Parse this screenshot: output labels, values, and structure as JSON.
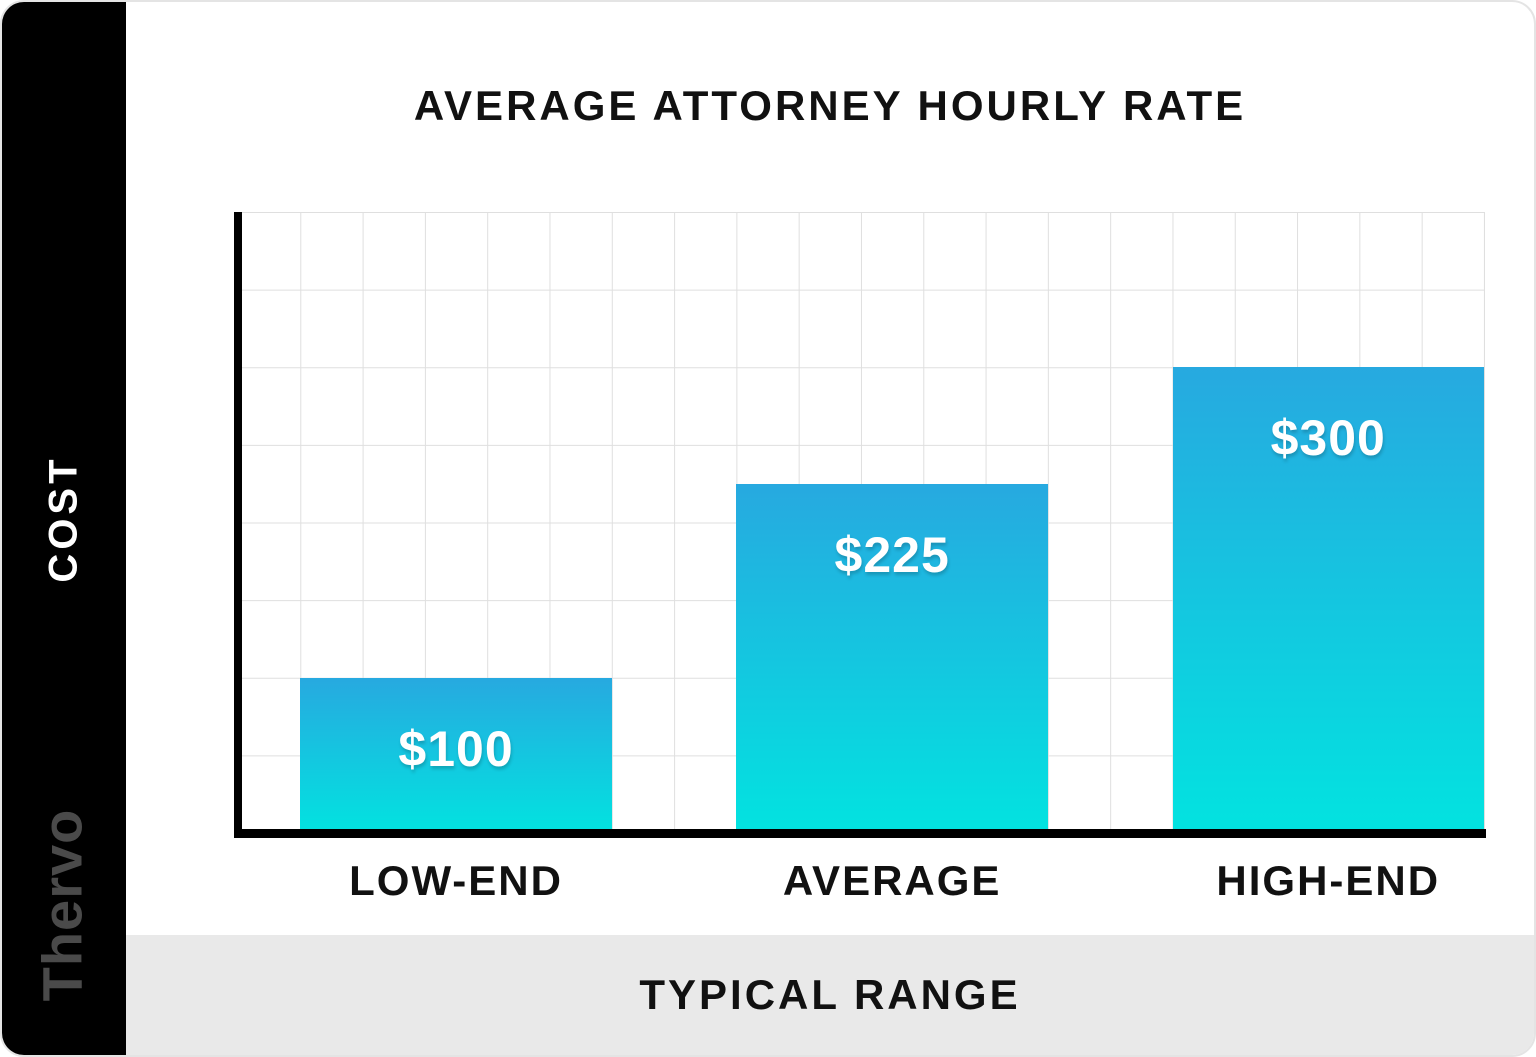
{
  "sidebar": {
    "brand": "Thervo"
  },
  "chart_data": {
    "type": "bar",
    "title": "AVERAGE ATTORNEY HOURLY RATE",
    "categories": [
      "LOW-END",
      "AVERAGE",
      "HIGH-END"
    ],
    "values": [
      100,
      225,
      300
    ],
    "value_labels": [
      "$100",
      "$225",
      "$300"
    ],
    "xlabel": "TYPICAL RANGE",
    "ylabel": "COST",
    "ylim": [
      0,
      400
    ],
    "grid": true,
    "grid_step_y": 50,
    "grid_cols": 20,
    "grid_rows": 8,
    "legend": false,
    "bar_gradient_top": "#27a9e0",
    "bar_gradient_bottom": "#02e3e0",
    "value_label_color": "#ffffff",
    "axis_color": "#000000",
    "grid_color": "#dfdfdf",
    "footer_band_color": "#e9e9e9",
    "sidebar_color": "#000000"
  }
}
